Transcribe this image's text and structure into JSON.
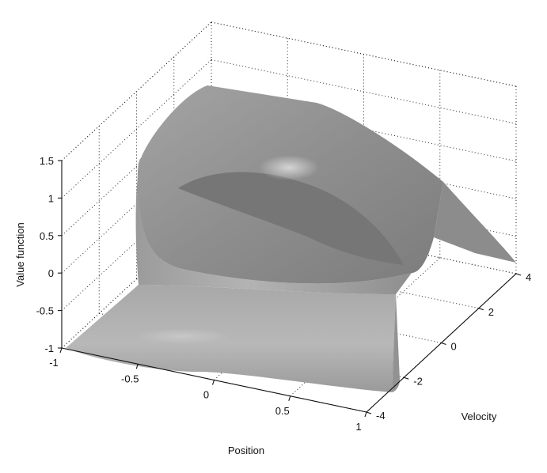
{
  "chart_data": {
    "type": "surface",
    "xlabel": "Position",
    "ylabel": "Velocity",
    "zlabel": "Value function",
    "xlim": [
      -1,
      1
    ],
    "ylim": [
      -4,
      4
    ],
    "zlim": [
      -1,
      1.5
    ],
    "x_ticks": [
      "-1",
      "-0.5",
      "0",
      "0.5",
      "1"
    ],
    "y_ticks": [
      "-4",
      "-2",
      "0",
      "2",
      "4"
    ],
    "z_ticks": [
      "-1",
      "-0.5",
      "0",
      "0.5",
      "1",
      "1.5"
    ],
    "grid": true,
    "surface_color": "#8a8a8a",
    "surface_description": "Value function surface over position and velocity: low plateau near -1 at negative positions rising sharply to a high plateau near 1.2, with a curved ridge and a descending wing at high velocity."
  }
}
